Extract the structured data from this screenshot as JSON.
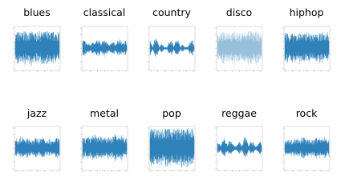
{
  "panels": [
    {
      "title": "blues"
    },
    {
      "title": "classical"
    },
    {
      "title": "country"
    },
    {
      "title": "disco"
    },
    {
      "title": "hiphop"
    },
    {
      "title": "jazz"
    },
    {
      "title": "metal"
    },
    {
      "title": "pop"
    },
    {
      "title": "reggae"
    },
    {
      "title": "rock"
    }
  ]
}
